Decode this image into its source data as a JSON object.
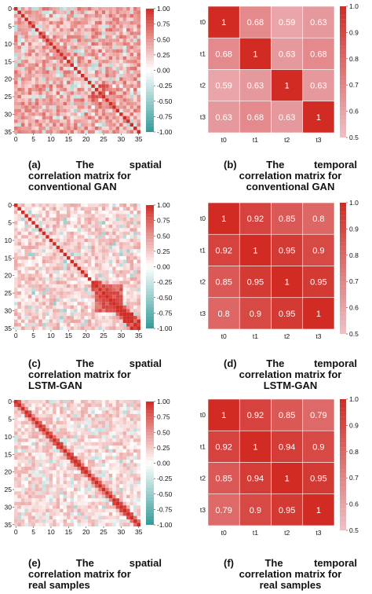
{
  "colors": {
    "low": "#2e9a98",
    "mid": "#ffffff",
    "high": "#d12b24",
    "temporal_low": "#eec0c6",
    "temporal_high": "#d12b24",
    "grid_spatial": "#ffffff",
    "grid_temporal": "#ffffff"
  },
  "chart_data": [
    {
      "id": "a",
      "type": "heatmap",
      "kind": "spatial",
      "variant": "gan",
      "size": 36,
      "x_ticks": [
        "0",
        "5",
        "10",
        "15",
        "20",
        "25",
        "30",
        "35"
      ],
      "y_ticks": [
        "0",
        "5",
        "10",
        "15",
        "20",
        "25",
        "30",
        "35"
      ],
      "colorbar_range": [
        -1.0,
        1.0
      ],
      "colorbar_ticks": [
        "1.00",
        "0.75",
        "0.50",
        "0.25",
        "0.00",
        "-0.25",
        "-0.50",
        "-0.75",
        "-1.00"
      ],
      "caption_parts": [
        "(a)",
        "The",
        "spatial"
      ],
      "caption_lines": [
        "correlation matrix for",
        "conventional GAN"
      ]
    },
    {
      "id": "b",
      "type": "heatmap",
      "kind": "temporal",
      "labels": [
        "t0",
        "t1",
        "t2",
        "t3"
      ],
      "values": [
        [
          1,
          0.68,
          0.59,
          0.63
        ],
        [
          0.68,
          1,
          0.63,
          0.68
        ],
        [
          0.59,
          0.63,
          1,
          0.63
        ],
        [
          0.63,
          0.68,
          0.63,
          1
        ]
      ],
      "value_labels": [
        [
          "1",
          "0.68",
          "0.59",
          "0.63"
        ],
        [
          "0.68",
          "1",
          "0.63",
          "0.68"
        ],
        [
          "0.59",
          "0.63",
          "1",
          "0.63"
        ],
        [
          "0.63",
          "0.68",
          "0.63",
          "1"
        ]
      ],
      "colorbar_range": [
        0.5,
        1.0
      ],
      "colorbar_ticks": [
        "1.0",
        "0.9",
        "0.8",
        "0.7",
        "0.6",
        "0.5"
      ],
      "caption_parts": [
        "(b)",
        "The",
        "temporal"
      ],
      "caption_lines": [
        "correlation matrix for",
        "conventional GAN"
      ]
    },
    {
      "id": "c",
      "type": "heatmap",
      "kind": "spatial",
      "variant": "lstm",
      "size": 36,
      "x_ticks": [
        "0",
        "5",
        "10",
        "15",
        "20",
        "25",
        "30",
        "35"
      ],
      "y_ticks": [
        "0",
        "5",
        "10",
        "15",
        "20",
        "25",
        "30",
        "35"
      ],
      "colorbar_range": [
        -1.0,
        1.0
      ],
      "colorbar_ticks": [
        "1.00",
        "0.75",
        "0.50",
        "0.25",
        "0.00",
        "-0.25",
        "-0.50",
        "-0.75",
        "-1.00"
      ],
      "caption_parts": [
        "(c)",
        "The",
        "spatial"
      ],
      "caption_lines": [
        "correlation matrix for",
        "LSTM-GAN"
      ]
    },
    {
      "id": "d",
      "type": "heatmap",
      "kind": "temporal",
      "labels": [
        "t0",
        "t1",
        "t2",
        "t3"
      ],
      "values": [
        [
          1,
          0.92,
          0.85,
          0.8
        ],
        [
          0.92,
          1,
          0.95,
          0.9
        ],
        [
          0.85,
          0.95,
          1,
          0.95
        ],
        [
          0.8,
          0.9,
          0.95,
          1
        ]
      ],
      "value_labels": [
        [
          "1",
          "0.92",
          "0.85",
          "0.8"
        ],
        [
          "0.92",
          "1",
          "0.95",
          "0.9"
        ],
        [
          "0.85",
          "0.95",
          "1",
          "0.95"
        ],
        [
          "0.8",
          "0.9",
          "0.95",
          "1"
        ]
      ],
      "colorbar_range": [
        0.5,
        1.0
      ],
      "colorbar_ticks": [
        "1.0",
        "0.9",
        "0.8",
        "0.7",
        "0.6",
        "0.5"
      ],
      "caption_parts": [
        "(d)",
        "The",
        "temporal"
      ],
      "caption_lines": [
        "correlation matrix for",
        "LSTM-GAN"
      ]
    },
    {
      "id": "e",
      "type": "heatmap",
      "kind": "spatial",
      "variant": "real",
      "size": 36,
      "x_ticks": [
        "0",
        "5",
        "10",
        "15",
        "20",
        "25",
        "30",
        "35"
      ],
      "y_ticks": [
        "0",
        "5",
        "10",
        "15",
        "20",
        "25",
        "30",
        "35"
      ],
      "colorbar_range": [
        -1.0,
        1.0
      ],
      "colorbar_ticks": [
        "1.00",
        "0.75",
        "0.50",
        "0.25",
        "0.00",
        "-0.25",
        "-0.50",
        "-0.75",
        "-1.00"
      ],
      "caption_parts": [
        "(e)",
        "The",
        "spatial"
      ],
      "caption_lines": [
        "correlation matrix for",
        "real samples"
      ]
    },
    {
      "id": "f",
      "type": "heatmap",
      "kind": "temporal",
      "labels": [
        "t0",
        "t1",
        "t2",
        "t3"
      ],
      "values": [
        [
          1,
          0.92,
          0.85,
          0.79
        ],
        [
          0.92,
          1,
          0.94,
          0.9
        ],
        [
          0.85,
          0.94,
          1,
          0.95
        ],
        [
          0.79,
          0.9,
          0.95,
          1
        ]
      ],
      "value_labels": [
        [
          "1",
          "0.92",
          "0.85",
          "0.79"
        ],
        [
          "0.92",
          "1",
          "0.94",
          "0.9"
        ],
        [
          "0.85",
          "0.94",
          "1",
          "0.95"
        ],
        [
          "0.79",
          "0.9",
          "0.95",
          "1"
        ]
      ],
      "colorbar_range": [
        0.5,
        1.0
      ],
      "colorbar_ticks": [
        "1.0",
        "0.9",
        "0.8",
        "0.7",
        "0.6",
        "0.5"
      ],
      "caption_parts": [
        "(f)",
        "The",
        "temporal"
      ],
      "caption_lines": [
        "correlation matrix for",
        "real samples"
      ]
    }
  ]
}
